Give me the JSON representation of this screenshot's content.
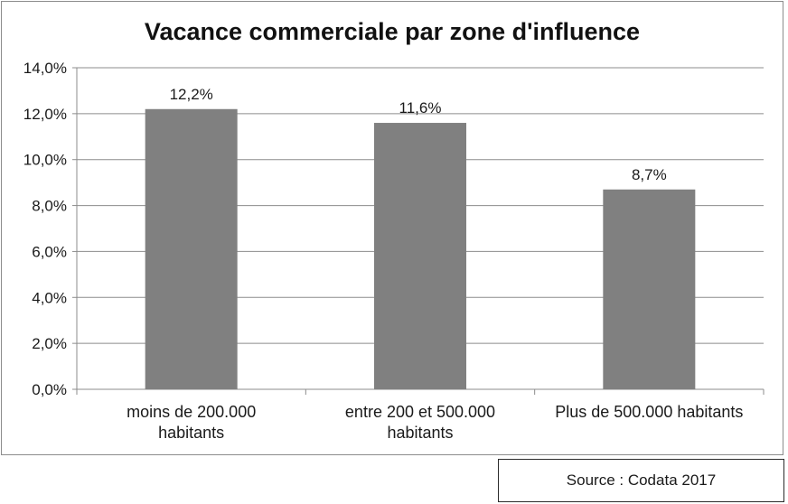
{
  "chart_data": {
    "type": "bar",
    "title": "Vacance commerciale par zone d'influence",
    "categories": [
      [
        "moins de 200.000",
        "habitants"
      ],
      [
        "entre 200 et 500.000",
        "habitants"
      ],
      [
        "Plus de 500.000 habitants"
      ]
    ],
    "values": [
      12.2,
      11.6,
      8.7
    ],
    "value_labels": [
      "12,2%",
      "11,6%",
      "8,7%"
    ],
    "y_ticks": [
      "0,0%",
      "2,0%",
      "4,0%",
      "6,0%",
      "8,0%",
      "10,0%",
      "12,0%",
      "14,0%"
    ],
    "ylim": [
      0,
      14
    ],
    "grid": true,
    "legend": "none",
    "bar_color": "#808080"
  },
  "source": {
    "label": "Source : Codata 2017"
  }
}
